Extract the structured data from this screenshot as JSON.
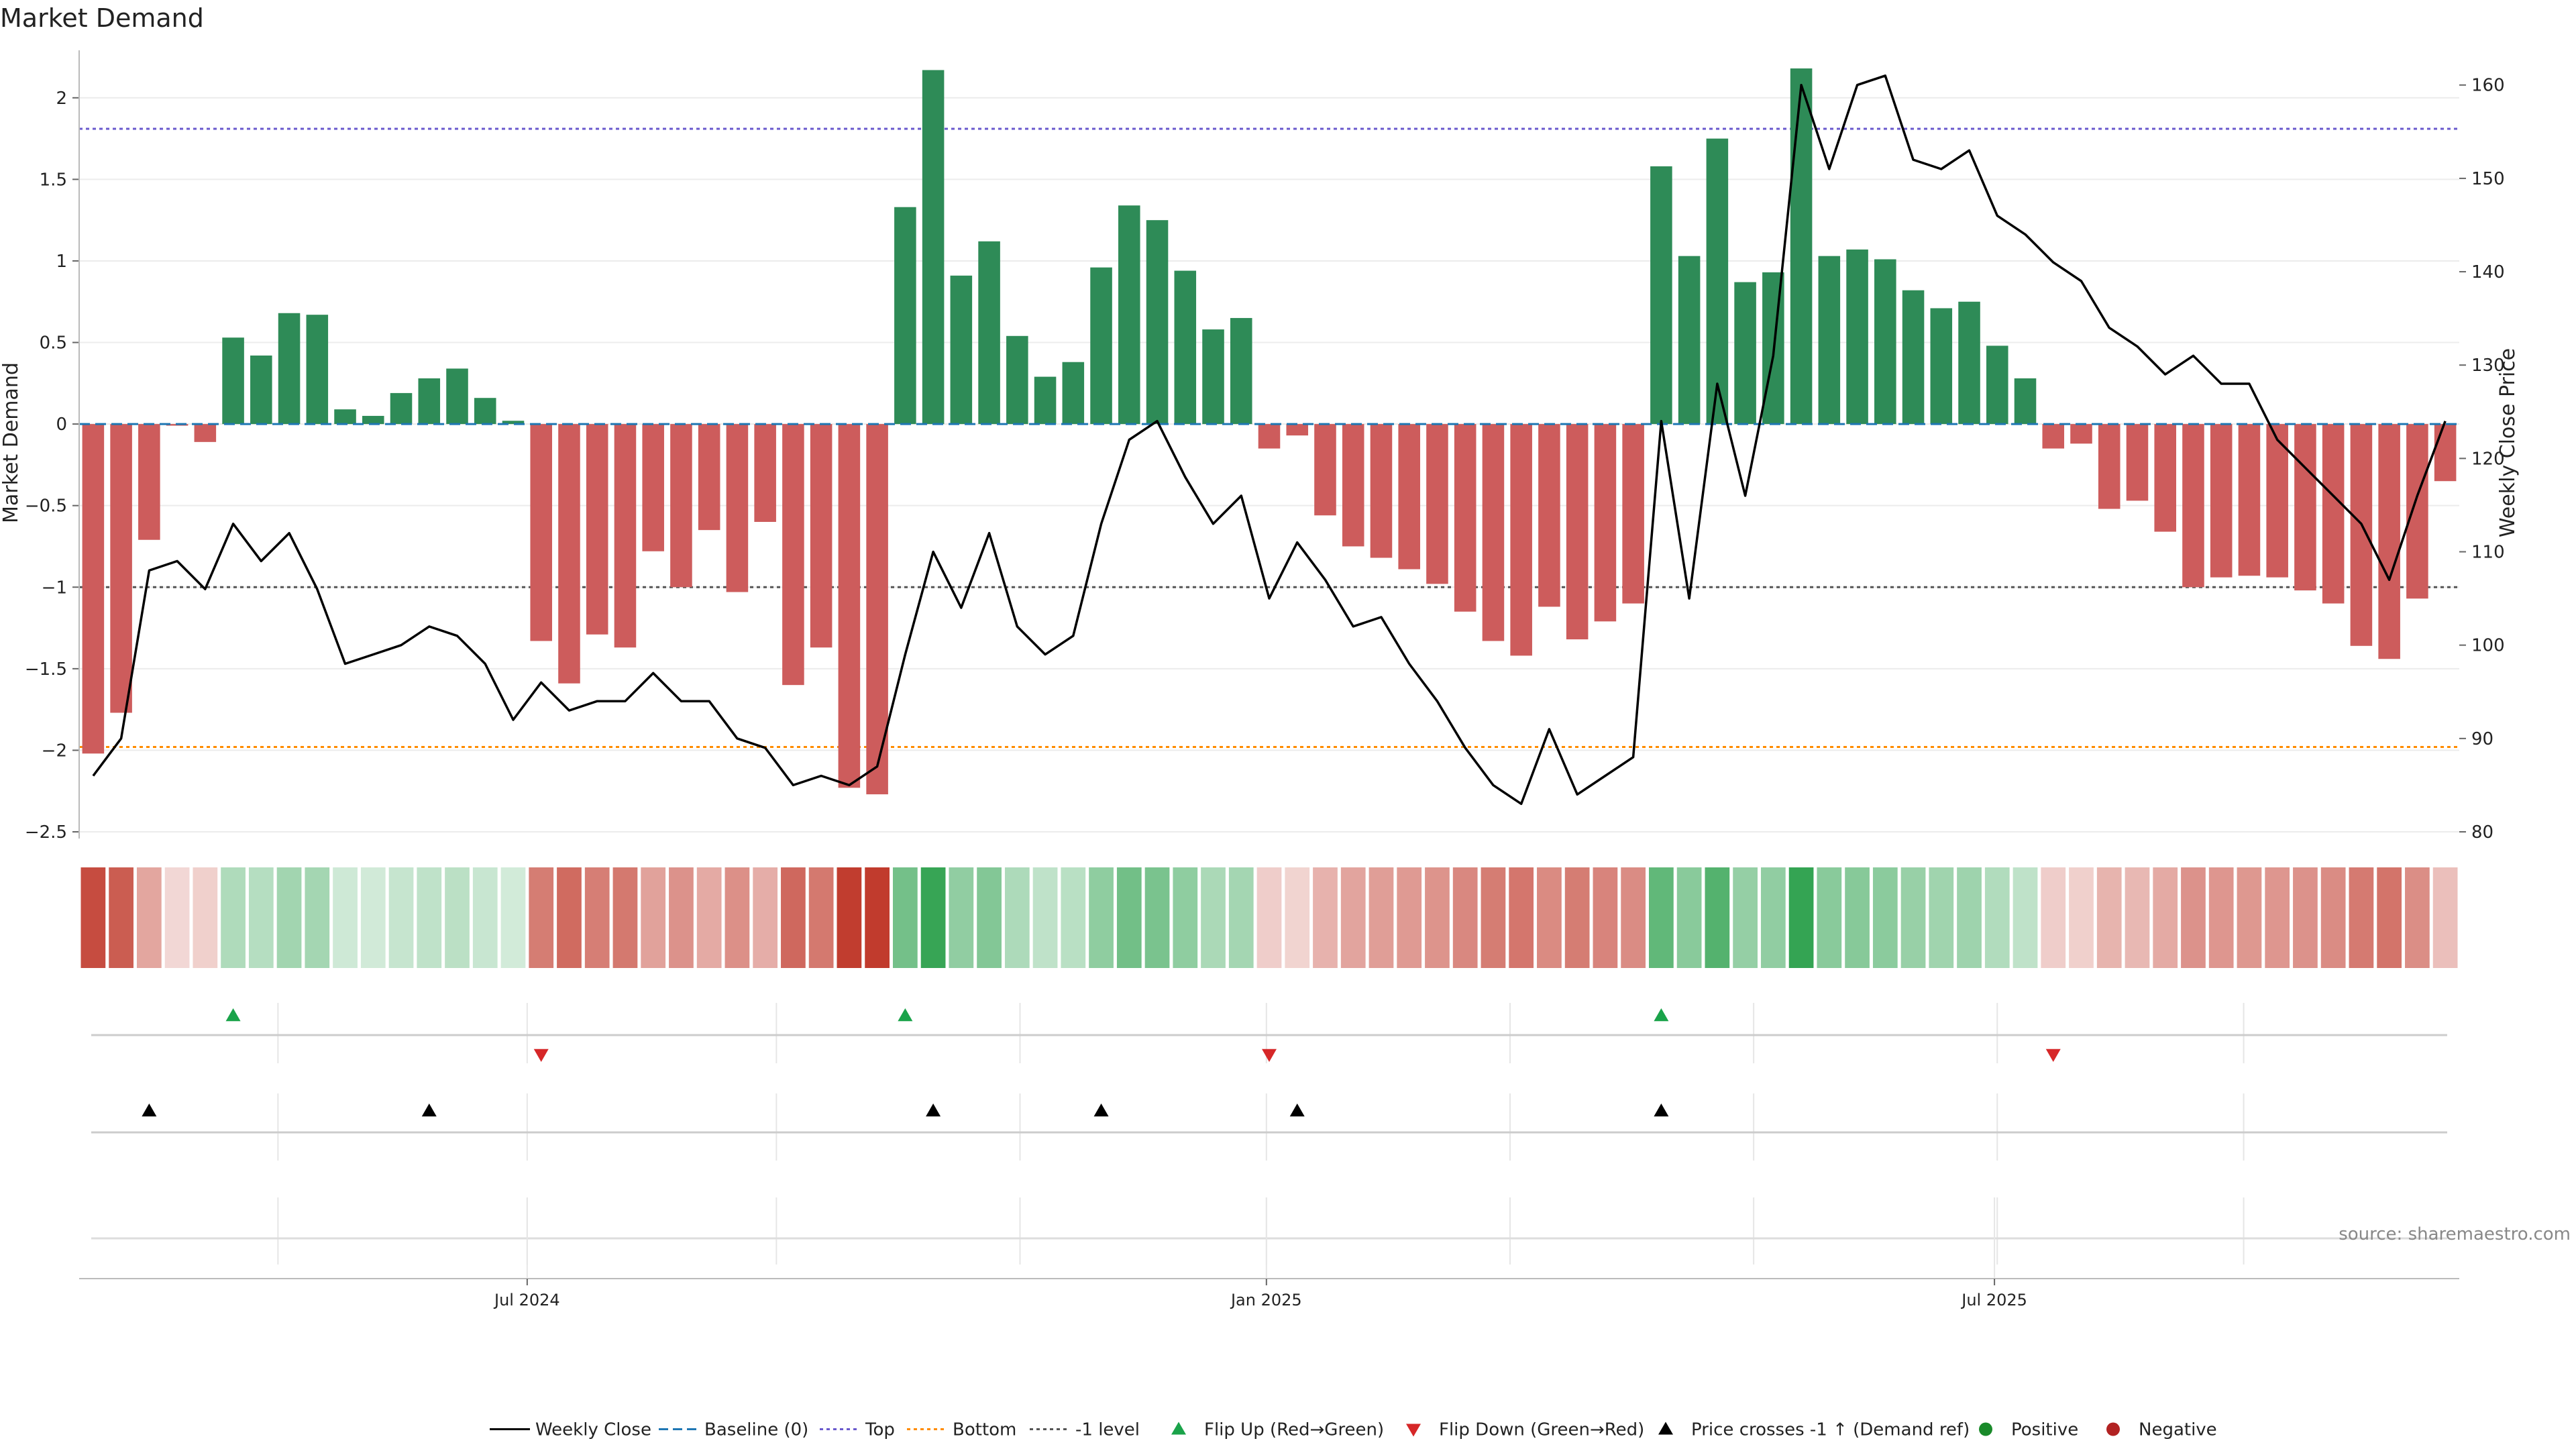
{
  "title": "Market Demand",
  "source": "source: sharemaestro.com",
  "colors": {
    "positive_bar": "#2e8b57",
    "negative_bar": "#cd5c5c",
    "baseline": "#1f77b4",
    "top_line": "#6a5acd",
    "bottom_line": "#ff8c00",
    "level_line": "#555555",
    "price_line": "#000000",
    "flip_up": "#1aa34a",
    "flip_down": "#d62728",
    "cross": "#000000",
    "positive_dot": "#1a8a2a",
    "negative_dot": "#b22222"
  },
  "chart_data": {
    "type": "bar",
    "title": "Market Demand",
    "ylabel": "Market Demand",
    "y2label": "Weekly Close Price",
    "ylim": [
      -2.5,
      2.25
    ],
    "y2lim": [
      80,
      163
    ],
    "yticks": [
      {
        "v": 2,
        "label": "2"
      },
      {
        "v": 1.5,
        "label": "1.5"
      },
      {
        "v": 1,
        "label": "1"
      },
      {
        "v": 0.5,
        "label": "0.5"
      },
      {
        "v": 0,
        "label": "0"
      },
      {
        "v": -0.5,
        "label": "−0.5"
      },
      {
        "v": -1,
        "label": "−1"
      },
      {
        "v": -1.5,
        "label": "−1.5"
      },
      {
        "v": -2,
        "label": "−2"
      },
      {
        "v": -2.5,
        "label": "−2.5"
      }
    ],
    "y2ticks": [
      {
        "v": 160,
        "label": "160"
      },
      {
        "v": 150,
        "label": "150"
      },
      {
        "v": 140,
        "label": "140"
      },
      {
        "v": 130,
        "label": "130"
      },
      {
        "v": 120,
        "label": "120"
      },
      {
        "v": 110,
        "label": "110"
      },
      {
        "v": 100,
        "label": "100"
      },
      {
        "v": 90,
        "label": "90"
      },
      {
        "v": 80,
        "label": "80"
      }
    ],
    "x_ticks": [
      {
        "index": 15.5,
        "label": "Jul 2024"
      },
      {
        "index": 41.9,
        "label": "Jan 2025"
      },
      {
        "index": 67.9,
        "label": "Jul 2025"
      }
    ],
    "minor_grid_index": [
      6.6,
      15.5,
      24.4,
      33.1,
      41.9,
      50.6,
      59.3,
      68.0,
      76.8
    ],
    "reference_lines": {
      "top": 1.81,
      "bottom": -1.98,
      "level": -1.0,
      "baseline": 0
    },
    "demand": [
      -2.02,
      -1.77,
      -0.71,
      -0.01,
      -0.11,
      0.53,
      0.42,
      0.68,
      0.67,
      0.09,
      0.05,
      0.19,
      0.28,
      0.34,
      0.16,
      0.02,
      -1.33,
      -1.59,
      -1.29,
      -1.37,
      -0.78,
      -1.0,
      -0.65,
      -1.03,
      -0.6,
      -1.6,
      -1.37,
      -2.23,
      -2.27,
      1.33,
      2.17,
      0.91,
      1.12,
      0.54,
      0.29,
      0.38,
      0.96,
      1.34,
      1.25,
      0.94,
      0.58,
      0.65,
      -0.15,
      -0.07,
      -0.56,
      -0.75,
      -0.82,
      -0.89,
      -0.98,
      -1.15,
      -1.33,
      -1.42,
      -1.12,
      -1.32,
      -1.21,
      -1.1,
      1.58,
      1.03,
      1.75,
      0.87,
      0.93,
      2.18,
      1.03,
      1.07,
      1.01,
      0.82,
      0.71,
      0.75,
      0.48,
      0.28,
      -0.15,
      -0.12,
      -0.52,
      -0.47,
      -0.66,
      -1.0,
      -0.94,
      -0.93,
      -0.94,
      -1.02,
      -1.1,
      -1.36,
      -1.44,
      -1.07,
      -0.35
    ],
    "price": [
      86,
      90,
      108,
      109,
      106,
      113,
      109,
      112,
      106,
      98,
      99,
      100,
      102,
      101,
      98,
      92,
      96,
      93,
      94,
      94,
      97,
      94,
      94,
      90,
      89,
      85,
      86,
      85,
      87,
      99,
      110,
      104,
      112,
      102,
      99,
      101,
      113,
      122,
      124,
      118,
      113,
      116,
      105,
      111,
      107,
      102,
      103,
      98,
      94,
      89,
      85,
      83,
      91,
      84,
      86,
      88,
      124,
      105,
      128,
      116,
      131,
      160,
      151,
      160,
      161,
      152,
      151,
      153,
      146,
      144,
      141,
      139,
      134,
      132,
      129,
      131,
      128,
      128,
      122,
      119,
      116,
      113,
      107,
      116,
      124
    ],
    "flip_up_indices": [
      5,
      29,
      56
    ],
    "flip_down_indices": [
      16,
      42,
      70
    ],
    "cross_indices": [
      2,
      12,
      30,
      36,
      43,
      56
    ],
    "legend": [
      {
        "label": "Weekly Close",
        "kind": "line"
      },
      {
        "label": "Baseline (0)",
        "kind": "dash"
      },
      {
        "label": "Top",
        "kind": "dot"
      },
      {
        "label": "Bottom",
        "kind": "dot2"
      },
      {
        "label": "-1 level",
        "kind": "dot3"
      },
      {
        "label": "Flip Up (Red→Green)",
        "kind": "tri-up"
      },
      {
        "label": "Flip Down (Green→Red)",
        "kind": "tri-down"
      },
      {
        "label": "Price crosses -1 ↑ (Demand ref)",
        "kind": "tri-black"
      },
      {
        "label": "Positive",
        "kind": "dot-green"
      },
      {
        "label": "Negative",
        "kind": "dot-red"
      }
    ]
  }
}
